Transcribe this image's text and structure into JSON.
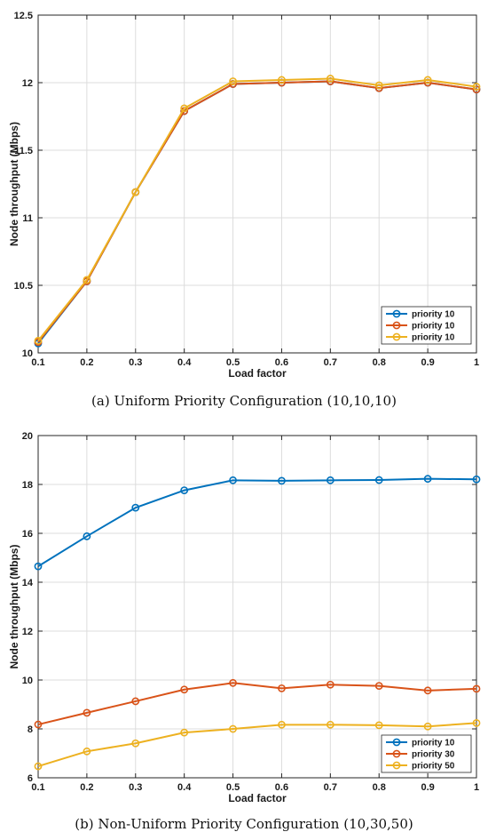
{
  "chart_data": [
    {
      "type": "line",
      "caption": "(a)  Uniform Priority Configuration (10,10,10)",
      "xlabel": "Load factor",
      "ylabel": "Node throughput (Mbps)",
      "xlim": [
        0.1,
        1
      ],
      "ylim": [
        10,
        12.5
      ],
      "xticks": [
        "0.1",
        "0.2",
        "0.3",
        "0.4",
        "0.5",
        "0.6",
        "0.7",
        "0.8",
        "0.9",
        "1"
      ],
      "yticks": [
        "10",
        "10.5",
        "11",
        "11.5",
        "12",
        "12.5"
      ],
      "grid": true,
      "legend_position": "bottom-right",
      "x": [
        0.1,
        0.2,
        0.3,
        0.4,
        0.5,
        0.6,
        0.7,
        0.8,
        0.9,
        1.0
      ],
      "series": [
        {
          "name": "priority 10",
          "color": "#0072BD",
          "values": [
            10.07,
            10.53,
            11.19,
            11.79,
            11.99,
            12.0,
            12.01,
            11.96,
            12.0,
            11.95
          ]
        },
        {
          "name": "priority 10",
          "color": "#D95319",
          "values": [
            10.08,
            10.53,
            11.19,
            11.79,
            11.99,
            12.0,
            12.01,
            11.96,
            12.0,
            11.95
          ]
        },
        {
          "name": "priority 10",
          "color": "#EDB120",
          "values": [
            10.09,
            10.54,
            11.19,
            11.81,
            12.01,
            12.02,
            12.03,
            11.98,
            12.02,
            11.97
          ]
        }
      ]
    },
    {
      "type": "line",
      "caption": "(b)  Non-Uniform Priority Configuration (10,30,50)",
      "xlabel": "Load factor",
      "ylabel": "Node throughput (Mbps)",
      "xlim": [
        0.1,
        1
      ],
      "ylim": [
        6,
        20
      ],
      "xticks": [
        "0.1",
        "0.2",
        "0.3",
        "0.4",
        "0.5",
        "0.6",
        "0.7",
        "0.8",
        "0.9",
        "1"
      ],
      "yticks": [
        "6",
        "8",
        "10",
        "12",
        "14",
        "16",
        "18",
        "20"
      ],
      "grid": true,
      "legend_position": "bottom-right",
      "x": [
        0.1,
        0.2,
        0.3,
        0.4,
        0.5,
        0.6,
        0.7,
        0.8,
        0.9,
        1.0
      ],
      "series": [
        {
          "name": "priority 10",
          "color": "#0072BD",
          "values": [
            14.65,
            15.88,
            17.05,
            17.76,
            18.17,
            18.15,
            18.17,
            18.18,
            18.23,
            18.21
          ]
        },
        {
          "name": "priority 30",
          "color": "#D95319",
          "values": [
            8.18,
            8.66,
            9.13,
            9.61,
            9.88,
            9.66,
            9.81,
            9.76,
            9.57,
            9.64
          ]
        },
        {
          "name": "priority 50",
          "color": "#EDB120",
          "values": [
            6.47,
            7.08,
            7.41,
            7.85,
            8.0,
            8.17,
            8.17,
            8.15,
            8.1,
            8.24
          ]
        }
      ]
    }
  ]
}
